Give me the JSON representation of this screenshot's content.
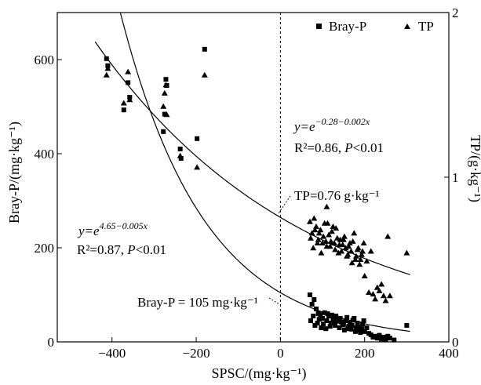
{
  "chart_data": {
    "type": "scatter",
    "title": "",
    "xlabel": "SPSC/(mg·kg⁻¹)",
    "ylabel_left": "Bray-P/(mg·kg⁻¹)",
    "ylabel_right": "TP/(g·kg⁻¹)",
    "xlim": [
      -530,
      400
    ],
    "ylim_left": [
      0,
      700
    ],
    "ylim_right": [
      0,
      2
    ],
    "x_ticks": [
      -400,
      -200,
      0,
      200,
      400
    ],
    "x_tick_labels": [
      "−400",
      "−200",
      "0",
      "200",
      "400"
    ],
    "y_left_ticks": [
      0,
      200,
      400,
      600
    ],
    "y_left_tick_labels": [
      "0",
      "200",
      "400",
      "600"
    ],
    "y_right_ticks": [
      0,
      1,
      2
    ],
    "y_right_tick_labels": [
      "0",
      "1",
      "2"
    ],
    "vertical_reference_x": 0,
    "legend": {
      "position": "top-right",
      "entries": [
        {
          "marker": "square",
          "label": "Bray-P"
        },
        {
          "marker": "triangle",
          "label": "TP"
        }
      ]
    },
    "annotations": {
      "bray_eq": {
        "prefix": "y=e",
        "exponent": "4.65−0.005x"
      },
      "bray_stats": {
        "r2": "R²=0.87, ",
        "p_italic": "P",
        "p_rest": "<0.01"
      },
      "tp_eq": {
        "prefix": "y=e",
        "exponent": "−0.28−0.002x"
      },
      "tp_stats": {
        "r2": "R²=0.86, ",
        "p_italic": "P",
        "p_rest": "<0.01"
      },
      "tp_ref": "TP=0.76 g·kg⁻¹",
      "bray_ref": "Bray-P = 105 mg·kg⁻¹"
    },
    "series": [
      {
        "name": "Bray-P",
        "axis": "left",
        "marker": "square",
        "fit": {
          "a": 4.65,
          "b": -0.005,
          "form": "exp(a + b*x)"
        },
        "points": [
          [
            -413,
            602
          ],
          [
            -410,
            587
          ],
          [
            -372,
            493
          ],
          [
            -362,
            551
          ],
          [
            -358,
            520
          ],
          [
            -278,
            447
          ],
          [
            -275,
            484
          ],
          [
            -272,
            558
          ],
          [
            -270,
            545
          ],
          [
            -238,
            410
          ],
          [
            -236,
            390
          ],
          [
            -198,
            432
          ],
          [
            -180,
            622
          ],
          [
            70,
            100
          ],
          [
            75,
            80
          ],
          [
            80,
            90
          ],
          [
            85,
            70
          ],
          [
            90,
            60
          ],
          [
            95,
            58
          ],
          [
            100,
            50
          ],
          [
            105,
            62
          ],
          [
            110,
            45
          ],
          [
            115,
            55
          ],
          [
            120,
            40
          ],
          [
            125,
            50
          ],
          [
            130,
            35
          ],
          [
            135,
            48
          ],
          [
            140,
            30
          ],
          [
            145,
            42
          ],
          [
            150,
            38
          ],
          [
            155,
            45
          ],
          [
            160,
            28
          ],
          [
            165,
            40
          ],
          [
            170,
            35
          ],
          [
            175,
            50
          ],
          [
            180,
            30
          ],
          [
            185,
            25
          ],
          [
            190,
            20
          ],
          [
            195,
            38
          ],
          [
            200,
            22
          ],
          [
            205,
            30
          ],
          [
            210,
            18
          ],
          [
            215,
            15
          ],
          [
            220,
            10
          ],
          [
            225,
            12
          ],
          [
            230,
            8
          ],
          [
            235,
            14
          ],
          [
            240,
            6
          ],
          [
            245,
            10
          ],
          [
            250,
            5
          ],
          [
            255,
            12
          ],
          [
            260,
            8
          ],
          [
            270,
            4
          ],
          [
            300,
            35
          ],
          [
            72,
            45
          ],
          [
            78,
            55
          ],
          [
            82,
            35
          ],
          [
            88,
            40
          ],
          [
            92,
            48
          ],
          [
            97,
            30
          ],
          [
            102,
            38
          ],
          [
            108,
            28
          ],
          [
            112,
            60
          ],
          [
            118,
            33
          ],
          [
            122,
            57
          ],
          [
            128,
            42
          ],
          [
            132,
            55
          ],
          [
            138,
            44
          ],
          [
            142,
            50
          ],
          [
            148,
            36
          ],
          [
            152,
            25
          ],
          [
            158,
            52
          ],
          [
            162,
            33
          ],
          [
            168,
            27
          ],
          [
            172,
            46
          ],
          [
            178,
            22
          ],
          [
            183,
            40
          ],
          [
            188,
            32
          ],
          [
            193,
            28
          ],
          [
            198,
            45
          ]
        ]
      },
      {
        "name": "TP",
        "axis": "right",
        "marker": "triangle",
        "fit": {
          "a": -0.28,
          "b": -0.002,
          "form": "exp(a + b*x)"
        },
        "points": [
          [
            -413,
            1.62
          ],
          [
            -410,
            1.66
          ],
          [
            -372,
            1.45
          ],
          [
            -362,
            1.64
          ],
          [
            -358,
            1.47
          ],
          [
            -278,
            1.43
          ],
          [
            -275,
            1.51
          ],
          [
            -272,
            1.56
          ],
          [
            -270,
            1.38
          ],
          [
            -238,
            1.13
          ],
          [
            -198,
            1.06
          ],
          [
            -180,
            1.62
          ],
          [
            70,
            0.73
          ],
          [
            75,
            0.66
          ],
          [
            80,
            0.75
          ],
          [
            85,
            0.7
          ],
          [
            90,
            0.62
          ],
          [
            95,
            0.68
          ],
          [
            100,
            0.6
          ],
          [
            105,
            0.72
          ],
          [
            110,
            0.58
          ],
          [
            115,
            0.65
          ],
          [
            120,
            0.61
          ],
          [
            125,
            0.7
          ],
          [
            130,
            0.56
          ],
          [
            135,
            0.63
          ],
          [
            140,
            0.59
          ],
          [
            145,
            0.55
          ],
          [
            150,
            0.62
          ],
          [
            155,
            0.57
          ],
          [
            160,
            0.53
          ],
          [
            165,
            0.6
          ],
          [
            170,
            0.48
          ],
          [
            175,
            0.66
          ],
          [
            180,
            0.52
          ],
          [
            185,
            0.57
          ],
          [
            190,
            0.5
          ],
          [
            195,
            0.55
          ],
          [
            200,
            0.4
          ],
          [
            205,
            0.49
          ],
          [
            210,
            0.3
          ],
          [
            215,
            0.55
          ],
          [
            220,
            0.29
          ],
          [
            225,
            0.26
          ],
          [
            230,
            0.33
          ],
          [
            235,
            0.31
          ],
          [
            240,
            0.35
          ],
          [
            245,
            0.28
          ],
          [
            250,
            0.25
          ],
          [
            255,
            0.64
          ],
          [
            260,
            0.28
          ],
          [
            300,
            0.54
          ],
          [
            72,
            0.63
          ],
          [
            78,
            0.57
          ],
          [
            82,
            0.68
          ],
          [
            88,
            0.6
          ],
          [
            92,
            0.66
          ],
          [
            97,
            0.54
          ],
          [
            102,
            0.64
          ],
          [
            108,
            0.61
          ],
          [
            112,
            0.72
          ],
          [
            118,
            0.58
          ],
          [
            122,
            0.67
          ],
          [
            128,
            0.6
          ],
          [
            132,
            0.69
          ],
          [
            138,
            0.54
          ],
          [
            142,
            0.62
          ],
          [
            148,
            0.59
          ],
          [
            152,
            0.64
          ],
          [
            158,
            0.52
          ],
          [
            162,
            0.58
          ],
          [
            168,
            0.55
          ],
          [
            172,
            0.61
          ],
          [
            178,
            0.5
          ],
          [
            183,
            0.56
          ],
          [
            188,
            0.47
          ],
          [
            193,
            0.53
          ],
          [
            198,
            0.6
          ],
          [
            110,
            0.82
          ]
        ]
      }
    ]
  }
}
